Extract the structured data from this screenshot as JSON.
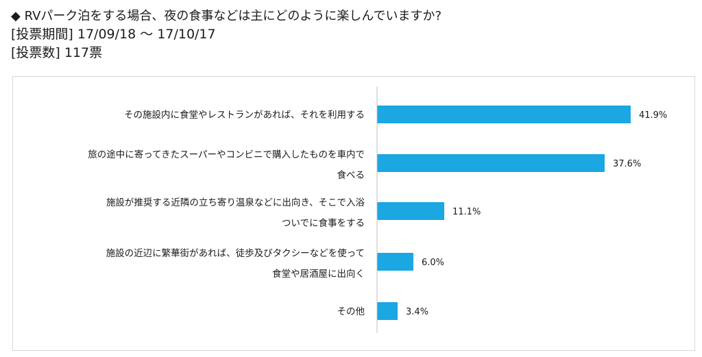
{
  "header": {
    "title": "◆  RVパーク泊をする場合、夜の食事などは主にどのように楽しんでいますか?",
    "period": "[投票期間] 17/09/18 ～ 17/10/17",
    "votes": "[投票数] 117票"
  },
  "chart_data": {
    "type": "bar",
    "orientation": "horizontal",
    "bar_color": "#1aa7e2",
    "xlim": [
      0,
      45
    ],
    "value_suffix": "%",
    "grid": false,
    "categories": [
      [
        "その施設内に食堂やレストランがあれば、それを利用する"
      ],
      [
        "旅の途中に寄ってきたスーパーやコンビニで購入したものを車内で",
        "食べる"
      ],
      [
        "施設が推奨する近隣の立ち寄り温泉などに出向き、そこで入浴",
        "ついでに食事をする"
      ],
      [
        "施設の近辺に繁華街があれば、徒歩及びタクシーなどを使って",
        "食堂や居酒屋に出向く"
      ],
      [
        "その他"
      ]
    ],
    "values": [
      41.9,
      37.6,
      11.1,
      6.0,
      3.4
    ],
    "value_labels": [
      "41.9%",
      "37.6%",
      "11.1%",
      "6.0%",
      "3.4%"
    ]
  }
}
